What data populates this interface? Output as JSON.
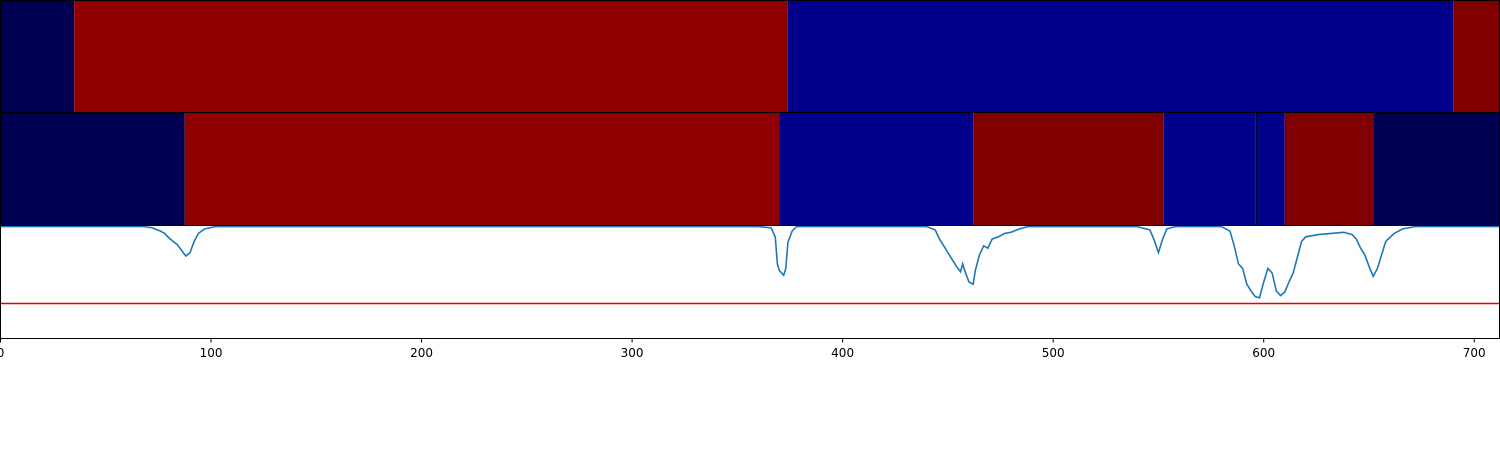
{
  "chart_data": {
    "type": "segmentation",
    "xlim": [
      0,
      712
    ],
    "xticks": [
      0,
      100,
      200,
      300,
      400,
      500,
      600,
      700
    ],
    "bars": [
      {
        "segments": [
          {
            "start": 0,
            "end": 35,
            "color": "#000050"
          },
          {
            "start": 35,
            "end": 374,
            "color": "#900000"
          },
          {
            "start": 374,
            "end": 690,
            "color": "#00008b"
          },
          {
            "start": 690,
            "end": 712,
            "color": "#800000"
          }
        ]
      },
      {
        "segments": [
          {
            "start": 0,
            "end": 87.5,
            "color": "#000050"
          },
          {
            "start": 87.5,
            "end": 370,
            "color": "#900000"
          },
          {
            "start": 370,
            "end": 462,
            "color": "#00008b"
          },
          {
            "start": 462,
            "end": 552.5,
            "color": "#800000"
          },
          {
            "start": 552.5,
            "end": 596,
            "color": "#00008b"
          },
          {
            "start": 596,
            "end": 597.5,
            "color": "#000050"
          },
          {
            "start": 597.5,
            "end": 610,
            "color": "#00008b"
          },
          {
            "start": 610,
            "end": 652,
            "color": "#800000"
          },
          {
            "start": 652,
            "end": 712,
            "color": "#000050"
          }
        ]
      }
    ],
    "line": {
      "color": "#1f77b4",
      "ylim": [
        0,
        1
      ],
      "threshold": 0.31,
      "threshold_color": "#e00000",
      "x": [
        0,
        40,
        68,
        72,
        76,
        78,
        80,
        82,
        84,
        86,
        88,
        90,
        92,
        94,
        97,
        102,
        360,
        366,
        368,
        369,
        370,
        371,
        372,
        373,
        374,
        376,
        378,
        440,
        444,
        446,
        448,
        450,
        452,
        454,
        456,
        457,
        458,
        460,
        462,
        463,
        465,
        467,
        469,
        471,
        474,
        477,
        480,
        484,
        488,
        540,
        546,
        548,
        550,
        552,
        554,
        558,
        580,
        584,
        586,
        588,
        590,
        592,
        594,
        596,
        598,
        600,
        602,
        604,
        606,
        608,
        610,
        612,
        614,
        616,
        618,
        620,
        626,
        632,
        638,
        642,
        644,
        646,
        648,
        650,
        652,
        654,
        656,
        658,
        662,
        666,
        672,
        712
      ],
      "values": [
        0.99,
        0.99,
        0.99,
        0.98,
        0.95,
        0.93,
        0.89,
        0.86,
        0.83,
        0.78,
        0.73,
        0.76,
        0.86,
        0.93,
        0.97,
        0.99,
        0.99,
        0.98,
        0.9,
        0.66,
        0.6,
        0.58,
        0.56,
        0.62,
        0.85,
        0.95,
        0.99,
        0.99,
        0.96,
        0.88,
        0.82,
        0.76,
        0.7,
        0.64,
        0.59,
        0.66,
        0.6,
        0.5,
        0.48,
        0.6,
        0.74,
        0.82,
        0.8,
        0.88,
        0.9,
        0.93,
        0.94,
        0.97,
        0.99,
        0.99,
        0.96,
        0.87,
        0.76,
        0.88,
        0.97,
        0.99,
        0.99,
        0.95,
        0.82,
        0.66,
        0.62,
        0.48,
        0.42,
        0.37,
        0.36,
        0.5,
        0.62,
        0.58,
        0.42,
        0.38,
        0.41,
        0.5,
        0.58,
        0.72,
        0.86,
        0.9,
        0.92,
        0.93,
        0.94,
        0.92,
        0.88,
        0.8,
        0.74,
        0.64,
        0.55,
        0.62,
        0.74,
        0.86,
        0.93,
        0.97,
        0.99,
        0.99
      ]
    }
  }
}
